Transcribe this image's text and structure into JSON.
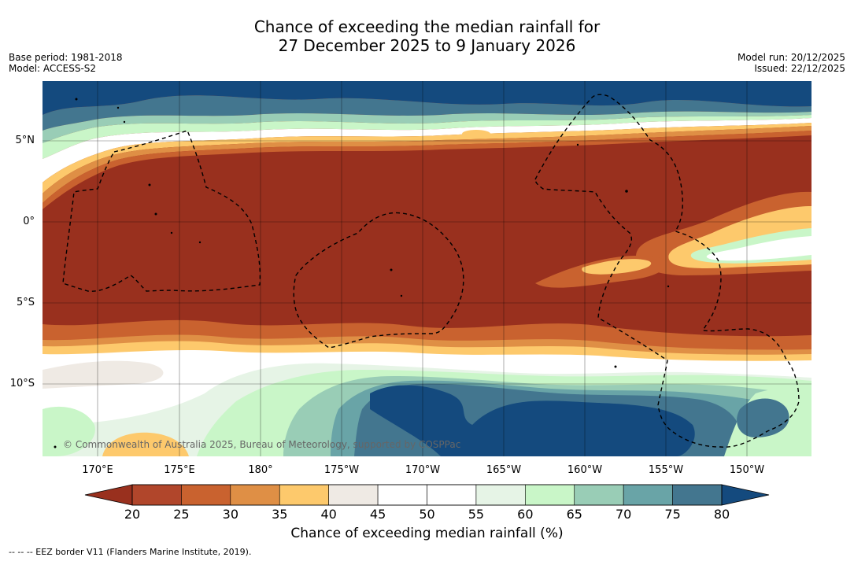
{
  "title": {
    "line1": "Chance of exceeding the median rainfall for",
    "line2": "27 December 2025 to 9 January 2026"
  },
  "meta": {
    "base_period": "Base period: 1981-2018",
    "model": "Model: ACCESS-S2",
    "model_run": "Model run: 20/12/2025",
    "issued": "Issued: 22/12/2025"
  },
  "axes": {
    "lat_labels": [
      "5°N",
      "0°",
      "5°S",
      "10°S"
    ],
    "lon_labels": [
      "170°E",
      "175°E",
      "180°",
      "175°W",
      "170°W",
      "165°W",
      "160°W",
      "155°W",
      "150°W"
    ]
  },
  "credit": "© Commonwealth of Australia 2025, Bureau of Meteorology, supported by COSPPac",
  "colorbar": {
    "ticks": [
      "20",
      "25",
      "30",
      "35",
      "40",
      "45",
      "50",
      "55",
      "60",
      "65",
      "70",
      "75",
      "80"
    ],
    "colors": [
      "#99301e",
      "#b1462b",
      "#c9622f",
      "#df8f45",
      "#fdc96c",
      "#efeae4",
      "#ffffff",
      "#ffffff",
      "#e6f4e6",
      "#c9f6c8",
      "#99cdb6",
      "#69a4a7",
      "#43768f",
      "#144a7e"
    ],
    "label": "Chance of exceeding median rainfall (%)"
  },
  "footnote": "--  --  -- EEZ border V11 (Flanders Marine Institute, 2019)."
}
